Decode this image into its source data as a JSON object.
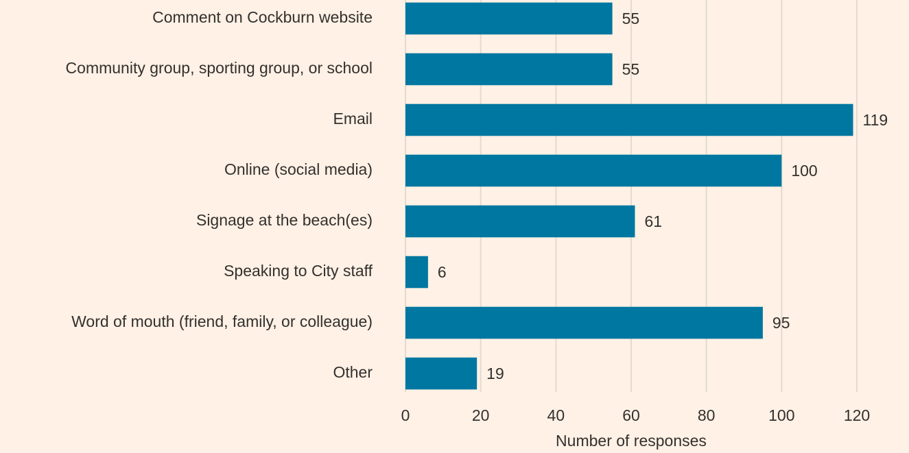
{
  "chart_data": {
    "type": "bar",
    "orientation": "horizontal",
    "categories": [
      "Comment on Cockburn website",
      "Community group, sporting group, or school",
      "Email",
      "Online (social media)",
      "Signage at the beach(es)",
      "Speaking to City staff",
      "Word of mouth (friend, family, or colleague)",
      "Other"
    ],
    "values": [
      55,
      55,
      119,
      100,
      61,
      6,
      95,
      19
    ],
    "color": "#0077a1",
    "xlabel": "Number of responses",
    "xlim": [
      0,
      120
    ],
    "xticks": [
      0,
      20,
      40,
      60,
      80,
      100,
      120
    ],
    "grid": true
  }
}
